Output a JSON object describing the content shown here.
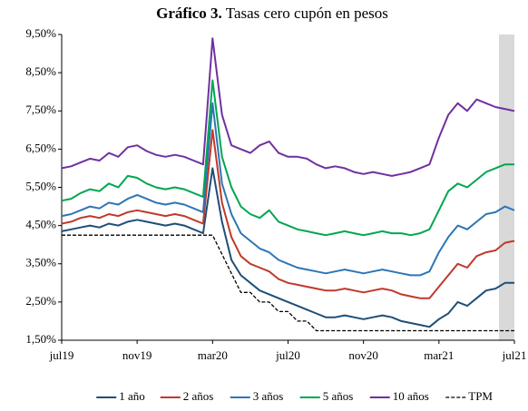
{
  "chart_data": {
    "type": "line",
    "title_label": "Gráfico 3.",
    "title": "Tasas cero cupón en pesos",
    "categories": [
      "jul19",
      null,
      null,
      null,
      null,
      null,
      null,
      null,
      "nov19",
      null,
      null,
      null,
      null,
      null,
      null,
      null,
      "mar20",
      null,
      null,
      null,
      null,
      null,
      null,
      null,
      "jul20",
      null,
      null,
      null,
      null,
      null,
      null,
      null,
      "nov20",
      null,
      null,
      null,
      null,
      null,
      null,
      null,
      "mar21",
      null,
      null,
      null,
      null,
      null,
      null,
      null,
      "jul21"
    ],
    "ylim": [
      1.5,
      9.5
    ],
    "yticks": [
      {
        "value": 1.5,
        "label": "1,50%"
      },
      {
        "value": 2.5,
        "label": "2,50%"
      },
      {
        "value": 3.5,
        "label": "3,50%"
      },
      {
        "value": 4.5,
        "label": "4,50%"
      },
      {
        "value": 5.5,
        "label": "5,50%"
      },
      {
        "value": 6.5,
        "label": "6,50%"
      },
      {
        "value": 7.5,
        "label": "7,50%"
      },
      {
        "value": 8.5,
        "label": "8,50%"
      },
      {
        "value": 9.5,
        "label": "9,50%"
      }
    ],
    "series": [
      {
        "name": "1 año",
        "color": "#1f4e79",
        "dash": false,
        "values": [
          4.35,
          4.4,
          4.45,
          4.5,
          4.45,
          4.55,
          4.5,
          4.6,
          4.65,
          4.6,
          4.55,
          4.5,
          4.55,
          4.5,
          4.4,
          4.3,
          6.0,
          4.6,
          3.6,
          3.2,
          3.0,
          2.8,
          2.7,
          2.6,
          2.5,
          2.4,
          2.3,
          2.2,
          2.1,
          2.1,
          2.15,
          2.1,
          2.05,
          2.1,
          2.15,
          2.1,
          2.0,
          1.95,
          1.9,
          1.85,
          2.05,
          2.2,
          2.5,
          2.4,
          2.6,
          2.8,
          2.85,
          3.0,
          3.0
        ]
      },
      {
        "name": "2 años",
        "color": "#c0392b",
        "dash": false,
        "values": [
          4.55,
          4.6,
          4.7,
          4.75,
          4.7,
          4.8,
          4.75,
          4.85,
          4.9,
          4.85,
          4.8,
          4.75,
          4.8,
          4.75,
          4.65,
          4.55,
          7.0,
          5.1,
          4.2,
          3.7,
          3.5,
          3.4,
          3.3,
          3.1,
          3.0,
          2.95,
          2.9,
          2.85,
          2.8,
          2.8,
          2.85,
          2.8,
          2.75,
          2.8,
          2.85,
          2.8,
          2.7,
          2.65,
          2.6,
          2.6,
          2.9,
          3.2,
          3.5,
          3.4,
          3.7,
          3.8,
          3.85,
          4.05,
          4.1
        ]
      },
      {
        "name": "3 años",
        "color": "#2e75b6",
        "dash": false,
        "values": [
          4.75,
          4.8,
          4.9,
          5.0,
          4.95,
          5.1,
          5.05,
          5.2,
          5.3,
          5.2,
          5.1,
          5.05,
          5.1,
          5.05,
          4.95,
          4.85,
          7.7,
          5.6,
          4.8,
          4.3,
          4.1,
          3.9,
          3.8,
          3.6,
          3.5,
          3.4,
          3.35,
          3.3,
          3.25,
          3.3,
          3.35,
          3.3,
          3.25,
          3.3,
          3.35,
          3.3,
          3.25,
          3.2,
          3.2,
          3.3,
          3.8,
          4.2,
          4.5,
          4.4,
          4.6,
          4.8,
          4.85,
          5.0,
          4.9
        ]
      },
      {
        "name": "5 años",
        "color": "#00a651",
        "dash": false,
        "values": [
          5.15,
          5.2,
          5.35,
          5.45,
          5.4,
          5.6,
          5.5,
          5.8,
          5.75,
          5.6,
          5.5,
          5.45,
          5.5,
          5.45,
          5.35,
          5.25,
          8.3,
          6.3,
          5.5,
          5.0,
          4.8,
          4.7,
          4.9,
          4.6,
          4.5,
          4.4,
          4.35,
          4.3,
          4.25,
          4.3,
          4.35,
          4.3,
          4.25,
          4.3,
          4.35,
          4.3,
          4.3,
          4.25,
          4.3,
          4.4,
          4.9,
          5.4,
          5.6,
          5.5,
          5.7,
          5.9,
          6.0,
          6.1,
          6.1
        ]
      },
      {
        "name": "10 años",
        "color": "#7030a0",
        "dash": false,
        "values": [
          6.0,
          6.05,
          6.15,
          6.25,
          6.2,
          6.4,
          6.3,
          6.55,
          6.6,
          6.45,
          6.35,
          6.3,
          6.35,
          6.3,
          6.2,
          6.1,
          9.4,
          7.4,
          6.6,
          6.5,
          6.4,
          6.6,
          6.7,
          6.4,
          6.3,
          6.3,
          6.25,
          6.1,
          6.0,
          6.05,
          6.0,
          5.9,
          5.85,
          5.9,
          5.85,
          5.8,
          5.85,
          5.9,
          6.0,
          6.1,
          6.8,
          7.4,
          7.7,
          7.5,
          7.8,
          7.7,
          7.6,
          7.55,
          7.5
        ]
      },
      {
        "name": "TPM",
        "color": "#000000",
        "dash": true,
        "values": [
          4.25,
          4.25,
          4.25,
          4.25,
          4.25,
          4.25,
          4.25,
          4.25,
          4.25,
          4.25,
          4.25,
          4.25,
          4.25,
          4.25,
          4.25,
          4.25,
          4.25,
          3.75,
          3.25,
          2.75,
          2.75,
          2.5,
          2.5,
          2.25,
          2.25,
          2.0,
          2.0,
          1.75,
          1.75,
          1.75,
          1.75,
          1.75,
          1.75,
          1.75,
          1.75,
          1.75,
          1.75,
          1.75,
          1.75,
          1.75,
          1.75,
          1.75,
          1.75,
          1.75,
          1.75,
          1.75,
          1.75,
          1.75,
          1.75
        ]
      }
    ]
  }
}
